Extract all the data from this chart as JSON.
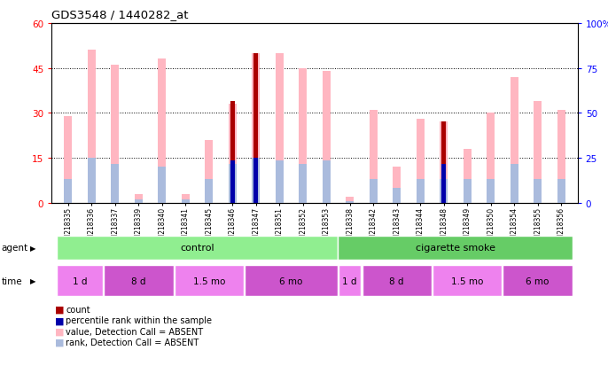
{
  "title": "GDS3548 / 1440282_at",
  "samples": [
    "GSM218335",
    "GSM218336",
    "GSM218337",
    "GSM218339",
    "GSM218340",
    "GSM218341",
    "GSM218345",
    "GSM218346",
    "GSM218347",
    "GSM218351",
    "GSM218352",
    "GSM218353",
    "GSM218338",
    "GSM218342",
    "GSM218343",
    "GSM218344",
    "GSM218348",
    "GSM218349",
    "GSM218350",
    "GSM218354",
    "GSM218355",
    "GSM218356"
  ],
  "value_absent": [
    29,
    51,
    46,
    3,
    48,
    3,
    21,
    33,
    50,
    50,
    45,
    44,
    2,
    31,
    12,
    28,
    27,
    18,
    30,
    42,
    34,
    31
  ],
  "rank_absent": [
    8,
    15,
    13,
    1,
    12,
    1,
    8,
    13,
    15,
    14,
    13,
    14,
    0.5,
    8,
    5,
    8,
    8,
    8,
    8,
    13,
    8,
    8
  ],
  "count_red": [
    0,
    0,
    0,
    0,
    0,
    0,
    0,
    34,
    50,
    0,
    0,
    0,
    0,
    0,
    0,
    0,
    27,
    0,
    0,
    0,
    0,
    0
  ],
  "rank_blue": [
    0,
    0,
    0,
    0,
    0,
    0,
    0,
    14,
    15,
    0,
    0,
    0,
    0,
    0,
    0,
    0,
    13,
    0,
    0,
    0,
    0,
    0
  ],
  "ylim_left": [
    0,
    60
  ],
  "ylim_right": [
    0,
    100
  ],
  "yticks_left": [
    0,
    15,
    30,
    45,
    60
  ],
  "yticks_right": [
    0,
    25,
    50,
    75,
    100
  ],
  "ytick_labels_right": [
    "0",
    "25",
    "50",
    "75",
    "100%"
  ],
  "agent_groups": [
    {
      "label": "control",
      "color": "#90EE90",
      "start": 0,
      "end": 12
    },
    {
      "label": "cigarette smoke",
      "color": "#66CC66",
      "start": 12,
      "end": 22
    }
  ],
  "time_groups": [
    {
      "label": "1 d",
      "color": "#EE82EE",
      "start": 0,
      "end": 2
    },
    {
      "label": "8 d",
      "color": "#DA70D6",
      "start": 2,
      "end": 5
    },
    {
      "label": "1.5 mo",
      "color": "#EE82EE",
      "start": 5,
      "end": 8
    },
    {
      "label": "6 mo",
      "color": "#DA70D6",
      "start": 8,
      "end": 12
    },
    {
      "label": "1 d",
      "color": "#EE82EE",
      "start": 12,
      "end": 13
    },
    {
      "label": "8 d",
      "color": "#DA70D6",
      "start": 13,
      "end": 16
    },
    {
      "label": "1.5 mo",
      "color": "#EE82EE",
      "start": 16,
      "end": 19
    },
    {
      "label": "6 mo",
      "color": "#DA70D6",
      "start": 19,
      "end": 22
    }
  ],
  "color_value_absent": "#FFB6C1",
  "color_rank_absent": "#AABBDD",
  "color_count": "#AA0000",
  "color_rank": "#0000AA",
  "bar_width": 0.35,
  "thin_bar_width": 0.18
}
